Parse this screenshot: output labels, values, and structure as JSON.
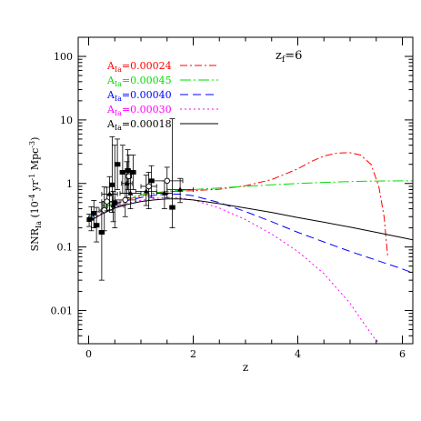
{
  "chart_data": {
    "type": "line",
    "xlabel": "z",
    "ylabel_main": "SNR",
    "ylabel_sub": "Ia",
    "ylabel_units": "(10",
    "ylabel_exp": "-4",
    "ylabel_units_tail": " yr",
    "ylabel_exp2": "-1",
    "ylabel_units_tail2": " Mpc",
    "ylabel_exp3": "-3",
    "ylabel_units_close": ")",
    "xlim": [
      -0.2,
      6.2
    ],
    "ylim": [
      0.003,
      200
    ],
    "ylog": true,
    "x_ticks": [
      "0",
      "2",
      "4",
      "6"
    ],
    "y_ticks": [
      "0.01",
      "0.1",
      "1",
      "10",
      "100"
    ],
    "annotation_main": "z",
    "annotation_sub": "f",
    "annotation_value": "=6",
    "legend_prefix": "A",
    "legend_sub": "Ia",
    "series": [
      {
        "name": "=0.00024",
        "color": "#ff0000",
        "dash": "8,3,2,3",
        "x": [
          0,
          0.25,
          0.5,
          0.75,
          1,
          1.25,
          1.5,
          1.75,
          2,
          2.5,
          3,
          3.5,
          4,
          4.25,
          4.5,
          4.75,
          5,
          5.2,
          5.4,
          5.55,
          5.65,
          5.72
        ],
        "y": [
          0.3,
          0.38,
          0.47,
          0.56,
          0.64,
          0.7,
          0.74,
          0.76,
          0.77,
          0.81,
          0.92,
          1.15,
          1.7,
          2.2,
          2.7,
          3.0,
          3.05,
          2.8,
          2.0,
          0.9,
          0.3,
          0.07
        ]
      },
      {
        "name": "=0.00045",
        "color": "#00dd00",
        "dash": "12,3,2,3",
        "x": [
          0,
          0.25,
          0.5,
          0.75,
          1,
          1.25,
          1.5,
          1.75,
          2,
          2.5,
          3,
          3.5,
          4,
          4.5,
          5,
          5.5,
          6,
          6.2
        ],
        "y": [
          0.3,
          0.4,
          0.5,
          0.59,
          0.66,
          0.71,
          0.75,
          0.78,
          0.8,
          0.85,
          0.9,
          0.95,
          1.0,
          1.04,
          1.07,
          1.09,
          1.1,
          1.1
        ]
      },
      {
        "name": "=0.00040",
        "color": "#0000ff",
        "dash": "9,5",
        "x": [
          0,
          0.25,
          0.5,
          0.75,
          1,
          1.25,
          1.5,
          1.75,
          2,
          2.5,
          3,
          3.5,
          4,
          4.5,
          5,
          5.5,
          6,
          6.2
        ],
        "y": [
          0.28,
          0.37,
          0.46,
          0.54,
          0.6,
          0.65,
          0.68,
          0.68,
          0.64,
          0.5,
          0.36,
          0.25,
          0.17,
          0.12,
          0.085,
          0.062,
          0.045,
          0.039
        ]
      },
      {
        "name": "=0.00030",
        "color": "#ff00ff",
        "dash": "2,3",
        "x": [
          0,
          0.25,
          0.5,
          0.75,
          1,
          1.25,
          1.5,
          1.75,
          2,
          2.5,
          3,
          3.5,
          4,
          4.5,
          5,
          5.25,
          5.45,
          5.6
        ],
        "y": [
          0.26,
          0.34,
          0.42,
          0.49,
          0.54,
          0.58,
          0.6,
          0.59,
          0.55,
          0.41,
          0.27,
          0.16,
          0.085,
          0.038,
          0.013,
          0.0065,
          0.0038,
          0.0028
        ]
      },
      {
        "name": "=0.00018",
        "color": "#000000",
        "dash": "",
        "x": [
          0,
          0.25,
          0.5,
          0.75,
          1,
          1.25,
          1.5,
          1.75,
          2,
          2.5,
          3,
          3.5,
          4,
          4.5,
          5,
          5.5,
          6,
          6.2
        ],
        "y": [
          0.25,
          0.33,
          0.41,
          0.47,
          0.52,
          0.55,
          0.57,
          0.57,
          0.55,
          0.48,
          0.41,
          0.35,
          0.29,
          0.245,
          0.205,
          0.17,
          0.14,
          0.13
        ]
      }
    ],
    "observations": [
      {
        "x": 0.01,
        "y": 0.27,
        "yerr": [
          0.06,
          0.06
        ],
        "xerr": 0.04,
        "marker": "filled-square"
      },
      {
        "x": 0.05,
        "y": 0.28,
        "yerr": [
          0.1,
          0.15
        ],
        "xerr": 0.05,
        "marker": "filled-triangle"
      },
      {
        "x": 0.1,
        "y": 0.34,
        "yerr": [
          0.14,
          0.2
        ],
        "xerr": 0.05,
        "marker": "filled-square"
      },
      {
        "x": 0.15,
        "y": 0.22,
        "yerr": [
          0.1,
          0.2
        ],
        "xerr": 0.05,
        "marker": "filled-square"
      },
      {
        "x": 0.25,
        "y": 0.17,
        "yerr": [
          0.14,
          0.33
        ],
        "xerr": 0.05,
        "marker": "filled-square"
      },
      {
        "x": 0.3,
        "y": 0.38,
        "yerr": [
          0.2,
          0.5
        ],
        "xerr": 0.1,
        "marker": "open-circle"
      },
      {
        "x": 0.35,
        "y": 0.52,
        "yerr": [
          0.15,
          0.35
        ],
        "xerr": 0.1,
        "marker": "open-circle"
      },
      {
        "x": 0.4,
        "y": 0.68,
        "yerr": [
          0.3,
          0.6
        ],
        "xerr": 0.15,
        "marker": "filled-triangle"
      },
      {
        "x": 0.45,
        "y": 0.95,
        "yerr": [
          0.6,
          4.5
        ],
        "xerr": 0.05,
        "marker": "filled-square"
      },
      {
        "x": 0.47,
        "y": 0.45,
        "yerr": [
          0.2,
          0.3
        ],
        "xerr": 0.2,
        "marker": "filled-triangle"
      },
      {
        "x": 0.5,
        "y": 0.5,
        "yerr": [
          0.3,
          3.5
        ],
        "xerr": 0.1,
        "marker": "filled-square"
      },
      {
        "x": 0.55,
        "y": 2.0,
        "yerr": [
          1.2,
          3.0
        ],
        "xerr": 0.05,
        "marker": "filled-square"
      },
      {
        "x": 0.65,
        "y": 1.5,
        "yerr": [
          0.8,
          2.5
        ],
        "xerr": 0.05,
        "marker": "filled-square"
      },
      {
        "x": 0.7,
        "y": 0.55,
        "yerr": [
          0.25,
          1.0
        ],
        "xerr": 0.2,
        "marker": "open-circle"
      },
      {
        "x": 0.73,
        "y": 1.0,
        "yerr": [
          0.4,
          1.2
        ],
        "xerr": 0.1,
        "marker": "filled-triangle"
      },
      {
        "x": 0.75,
        "y": 1.6,
        "yerr": [
          0.8,
          1.8
        ],
        "xerr": 0.05,
        "marker": "filled-square"
      },
      {
        "x": 0.77,
        "y": 1.3,
        "yerr": [
          0.6,
          1.5
        ],
        "xerr": 0.05,
        "marker": "open-circle"
      },
      {
        "x": 0.8,
        "y": 0.7,
        "yerr": [
          0.3,
          0.8
        ],
        "xerr": 0.2,
        "marker": "filled-triangle"
      },
      {
        "x": 0.85,
        "y": 1.5,
        "yerr": [
          0.7,
          1.3
        ],
        "xerr": 0.05,
        "marker": "filled-square"
      },
      {
        "x": 1.1,
        "y": 0.75,
        "yerr": [
          0.3,
          0.6
        ],
        "xerr": 0.2,
        "marker": "filled-triangle"
      },
      {
        "x": 1.15,
        "y": 0.9,
        "yerr": [
          0.5,
          0.6
        ],
        "xerr": 0.15,
        "marker": "open-circle"
      },
      {
        "x": 1.2,
        "y": 1.1,
        "yerr": [
          0.5,
          0.8
        ],
        "xerr": 0.05,
        "marker": "filled-square"
      },
      {
        "x": 1.45,
        "y": 0.7,
        "yerr": [
          0.3,
          0.4
        ],
        "xerr": 0.15,
        "marker": "filled-triangle"
      },
      {
        "x": 1.5,
        "y": 1.1,
        "yerr": [
          0.5,
          0.7
        ],
        "xerr": 0.3,
        "marker": "open-circle"
      },
      {
        "x": 1.6,
        "y": 0.42,
        "yerr": [
          0.22,
          10
        ],
        "xerr": 0.05,
        "marker": "filled-square"
      },
      {
        "x": 1.75,
        "y": 0.8,
        "yerr": [
          0.3,
          0.4
        ],
        "xerr": 0.25,
        "marker": "filled-triangle"
      }
    ]
  }
}
